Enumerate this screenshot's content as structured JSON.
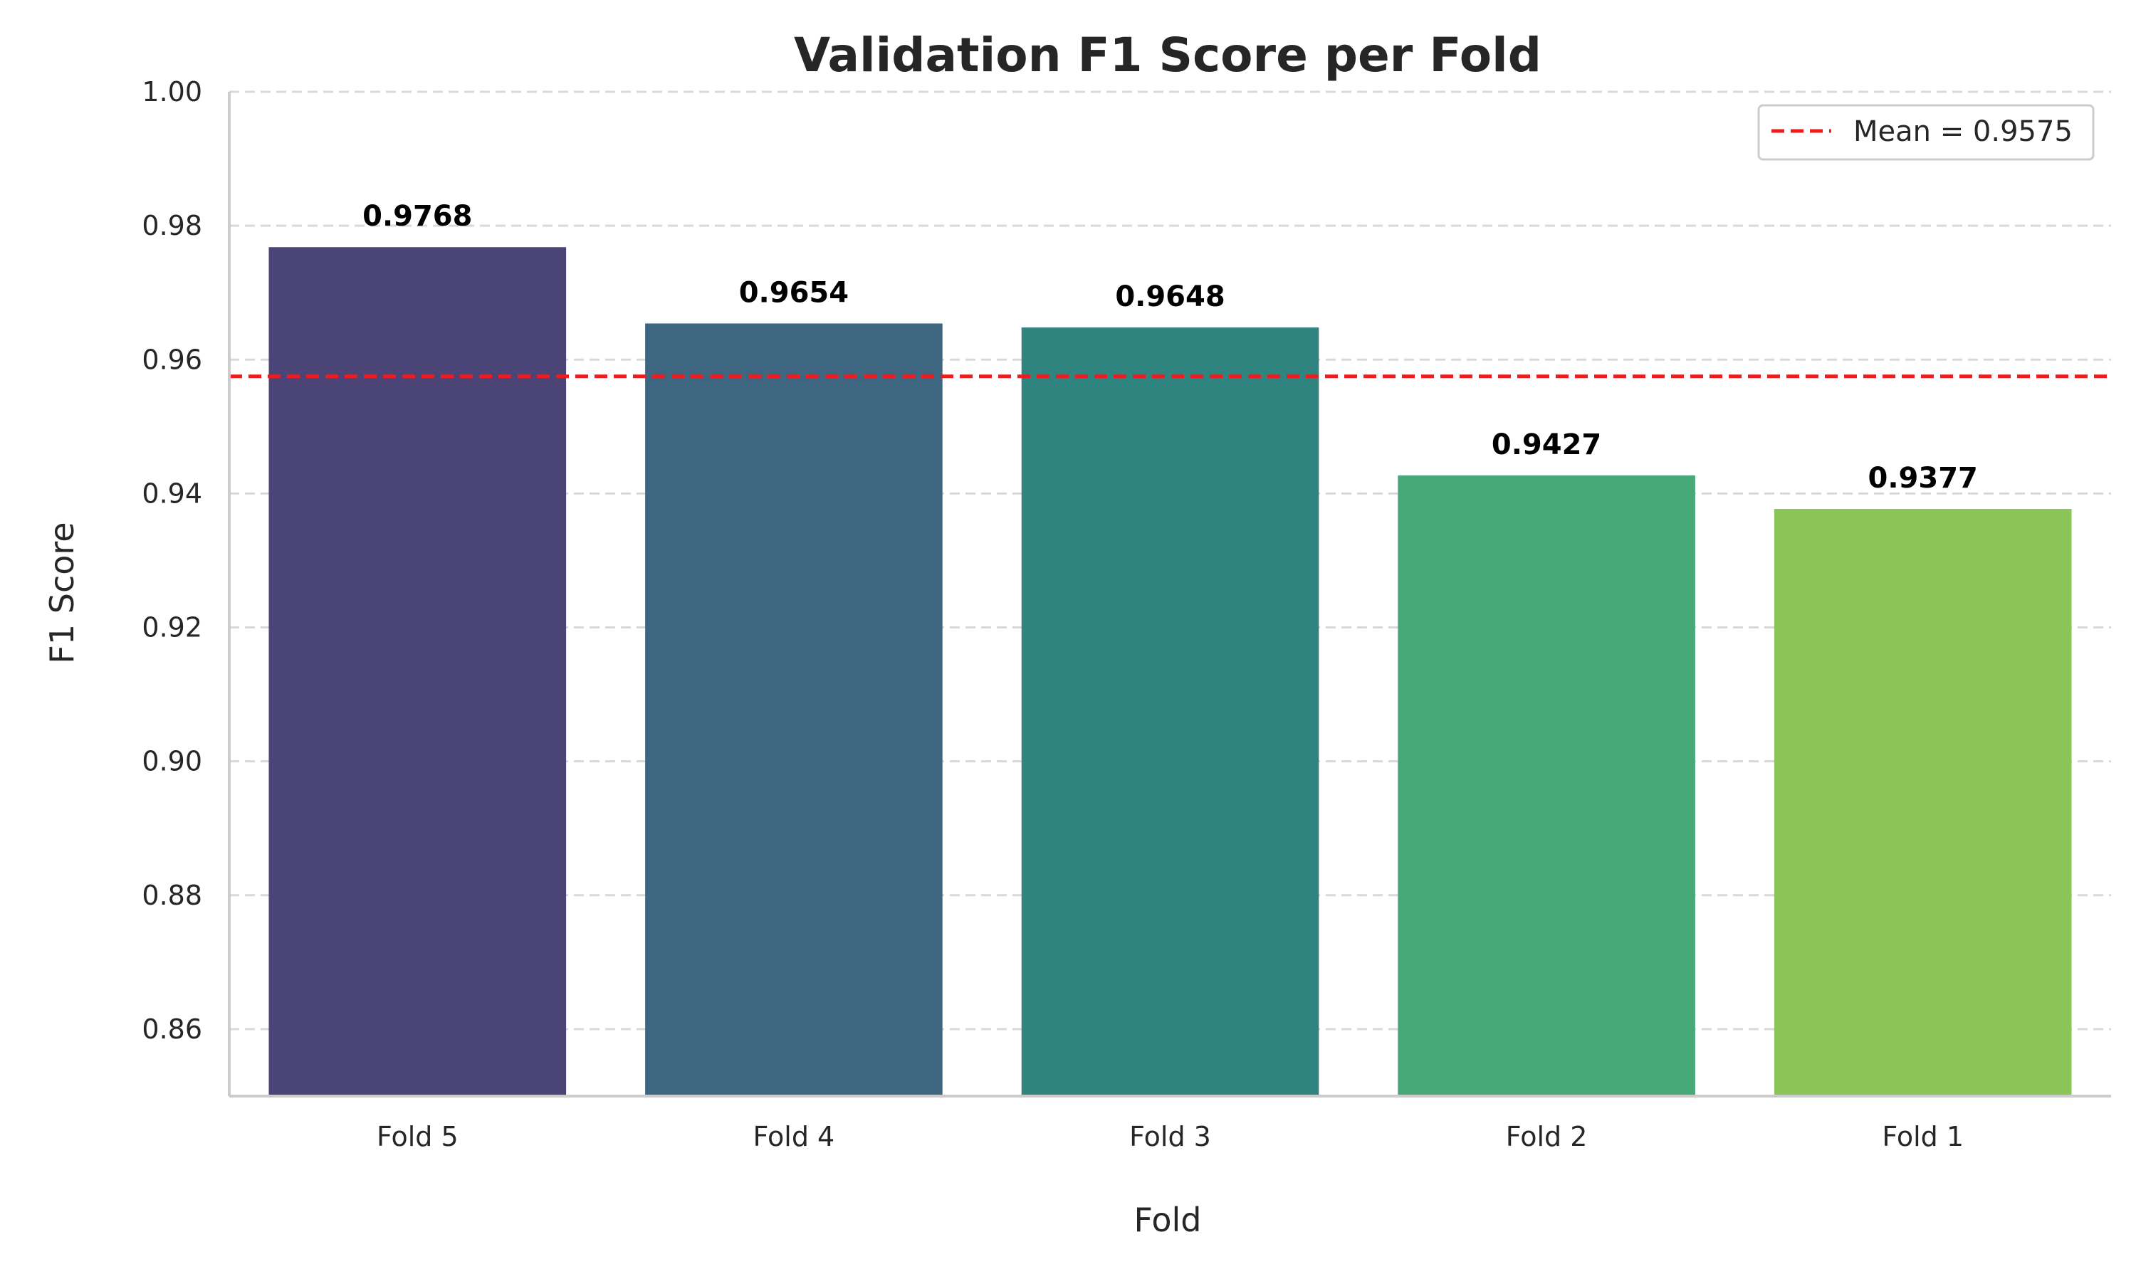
{
  "chart_data": {
    "type": "bar",
    "title": "Validation F1 Score per Fold",
    "xlabel": "Fold",
    "ylabel": "F1 Score",
    "categories": [
      "Fold 5",
      "Fold 4",
      "Fold 3",
      "Fold 2",
      "Fold 1"
    ],
    "values": [
      0.9768,
      0.9654,
      0.9648,
      0.9427,
      0.9377
    ],
    "value_labels": [
      "0.9768",
      "0.9654",
      "0.9648",
      "0.9427",
      "0.9377"
    ],
    "bar_colors": [
      "#4a4477",
      "#3e6680",
      "#2f8480",
      "#47a878",
      "#8bc457"
    ],
    "ylim": [
      0.85,
      1.0
    ],
    "yticks": [
      0.86,
      0.88,
      0.9,
      0.92,
      0.94,
      0.96,
      0.98,
      1.0
    ],
    "ytick_labels": [
      "0.86",
      "0.88",
      "0.90",
      "0.92",
      "0.94",
      "0.96",
      "0.98",
      "1.00"
    ],
    "grid": "y-dashed",
    "reference_line": {
      "value": 0.9575,
      "label": "Mean = 0.9575",
      "color": "#ee1c1c",
      "style": "dashed"
    },
    "legend": {
      "position": "top-right",
      "entries": [
        "Mean = 0.9575"
      ]
    }
  }
}
